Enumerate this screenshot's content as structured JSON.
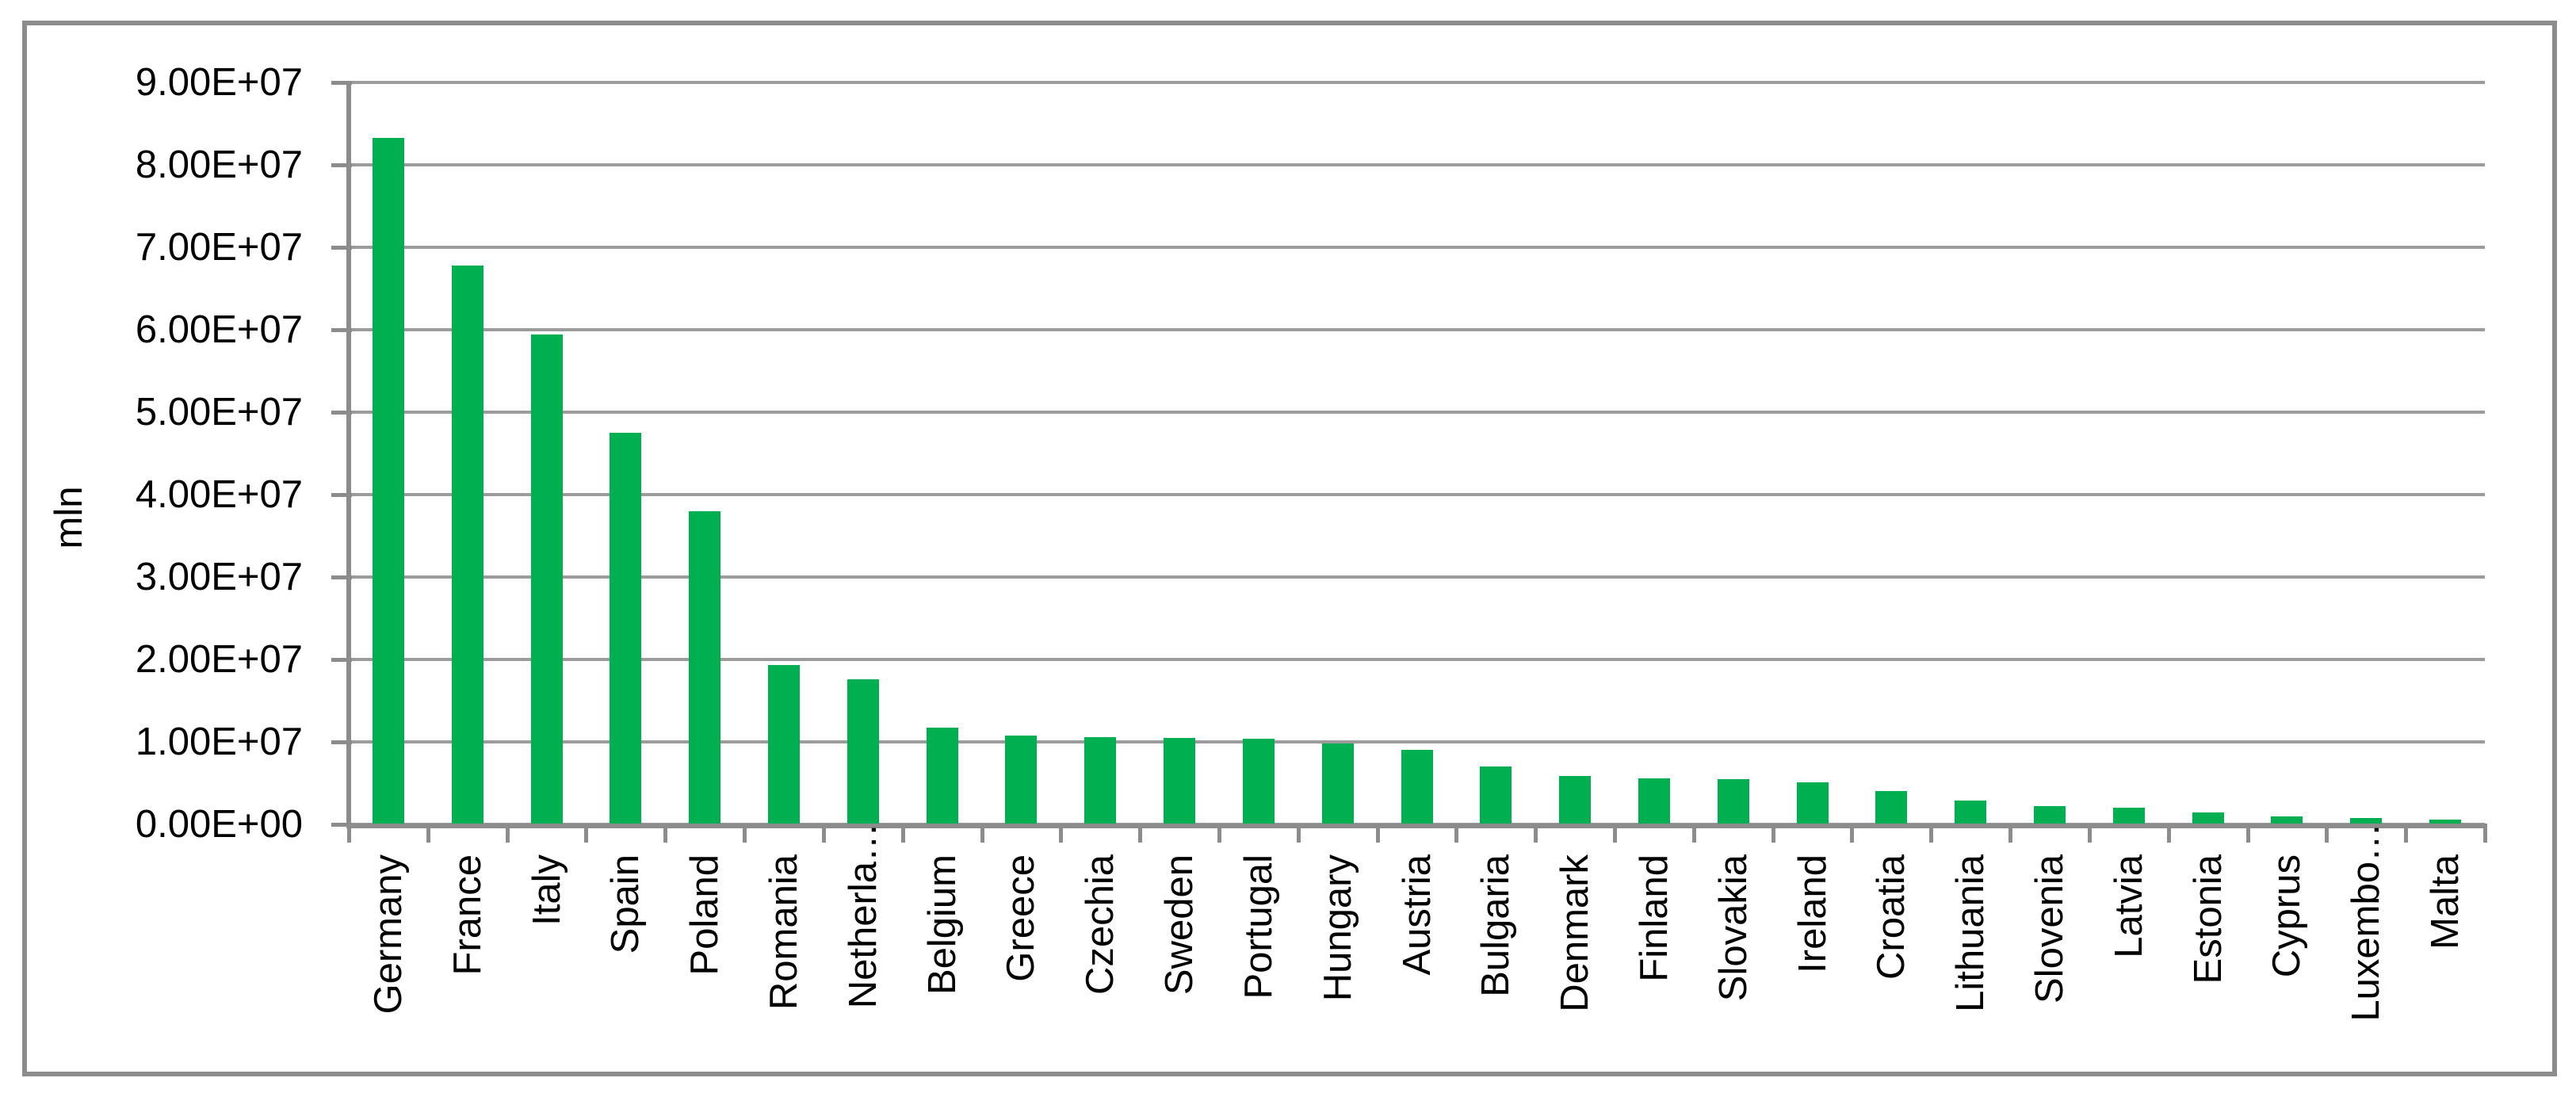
{
  "chart_data": {
    "type": "bar",
    "title": "",
    "xlabel": "",
    "ylabel": "mln",
    "ylim": [
      0,
      90000000
    ],
    "grid": "horizontal",
    "legend": "none",
    "y_tick_labels": [
      "0.00E+00",
      "1.00E+07",
      "2.00E+07",
      "3.00E+07",
      "4.00E+07",
      "5.00E+07",
      "6.00E+07",
      "7.00E+07",
      "8.00E+07",
      "9.00E+07"
    ],
    "categories": [
      "Germany",
      "France",
      "Italy",
      "Spain",
      "Poland",
      "Romania",
      "Netherla…",
      "Belgium",
      "Greece",
      "Czechia",
      "Sweden",
      "Portugal",
      "Hungary",
      "Austria",
      "Bulgaria",
      "Denmark",
      "Finland",
      "Slovakia",
      "Ireland",
      "Croatia",
      "Lithuania",
      "Slovenia",
      "Latvia",
      "Estonia",
      "Cyprus",
      "Luxembo…",
      "Malta"
    ],
    "values": [
      83200000,
      67700000,
      59300000,
      47400000,
      37900000,
      19200000,
      17500000,
      11600000,
      10700000,
      10500000,
      10400000,
      10300000,
      9700000,
      8900000,
      6900000,
      5800000,
      5500000,
      5400000,
      5000000,
      3900000,
      2800000,
      2100000,
      1900000,
      1300000,
      900000,
      640000,
      520000
    ]
  },
  "colors": {
    "bar": "#00B050",
    "gridline": "#9B9B9B",
    "axis": "#8C8C8C",
    "frame": "#8C8C8C",
    "text": "#000000",
    "background": "#FFFFFF"
  }
}
